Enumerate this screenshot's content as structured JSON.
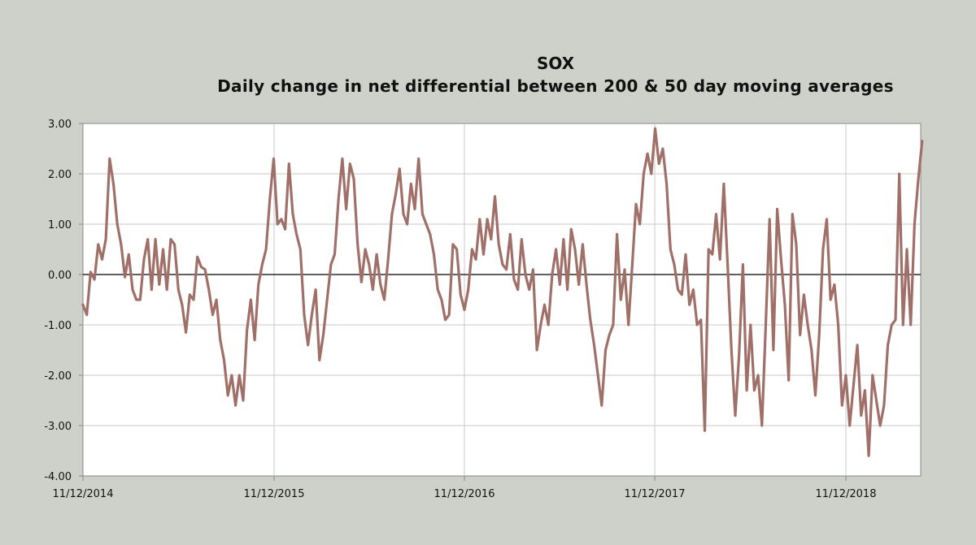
{
  "chart_data": {
    "type": "line",
    "title": "SOX",
    "subtitle": "Daily change in net differential  between 200 & 50 day moving averages",
    "xlabel": "",
    "ylabel": "",
    "ylim": [
      -4.0,
      3.0
    ],
    "yticks": [
      "3.00",
      "2.00",
      "1.00",
      "0.00",
      "-1.00",
      "-2.00",
      "-3.00",
      "-4.00"
    ],
    "xticks": [
      "11/12/2014",
      "11/12/2015",
      "11/12/2016",
      "11/12/2017",
      "11/12/2018"
    ],
    "grid": true,
    "legend": "none",
    "line_color": "#a07068",
    "series": [
      {
        "values": [
          [
            0.0,
            -0.6
          ],
          [
            0.02,
            -0.8
          ],
          [
            0.04,
            0.05
          ],
          [
            0.06,
            -0.1
          ],
          [
            0.08,
            0.6
          ],
          [
            0.1,
            0.3
          ],
          [
            0.12,
            0.7
          ],
          [
            0.14,
            2.3
          ],
          [
            0.16,
            1.8
          ],
          [
            0.18,
            1.0
          ],
          [
            0.2,
            0.6
          ],
          [
            0.22,
            -0.05
          ],
          [
            0.24,
            0.4
          ],
          [
            0.26,
            -0.3
          ],
          [
            0.28,
            -0.5
          ],
          [
            0.3,
            -0.5
          ],
          [
            0.32,
            0.3
          ],
          [
            0.34,
            0.7
          ],
          [
            0.36,
            -0.3
          ],
          [
            0.38,
            0.7
          ],
          [
            0.4,
            -0.2
          ],
          [
            0.42,
            0.5
          ],
          [
            0.44,
            -0.3
          ],
          [
            0.46,
            0.7
          ],
          [
            0.48,
            0.6
          ],
          [
            0.5,
            -0.3
          ],
          [
            0.52,
            -0.6
          ],
          [
            0.54,
            -1.15
          ],
          [
            0.56,
            -0.4
          ],
          [
            0.58,
            -0.5
          ],
          [
            0.6,
            0.35
          ],
          [
            0.62,
            0.15
          ],
          [
            0.64,
            0.1
          ],
          [
            0.66,
            -0.3
          ],
          [
            0.68,
            -0.8
          ],
          [
            0.7,
            -0.5
          ],
          [
            0.72,
            -1.3
          ],
          [
            0.74,
            -1.7
          ],
          [
            0.76,
            -2.4
          ],
          [
            0.78,
            -2.0
          ],
          [
            0.8,
            -2.6
          ],
          [
            0.82,
            -2.0
          ],
          [
            0.84,
            -2.5
          ],
          [
            0.86,
            -1.1
          ],
          [
            0.88,
            -0.5
          ],
          [
            0.9,
            -1.3
          ],
          [
            0.92,
            -0.2
          ],
          [
            0.94,
            0.2
          ],
          [
            0.96,
            0.5
          ],
          [
            0.98,
            1.5
          ],
          [
            1.0,
            2.3
          ],
          [
            1.02,
            1.0
          ],
          [
            1.04,
            1.1
          ],
          [
            1.06,
            0.9
          ],
          [
            1.08,
            2.2
          ],
          [
            1.1,
            1.2
          ],
          [
            1.12,
            0.8
          ],
          [
            1.14,
            0.5
          ],
          [
            1.16,
            -0.8
          ],
          [
            1.18,
            -1.4
          ],
          [
            1.2,
            -0.8
          ],
          [
            1.22,
            -0.3
          ],
          [
            1.24,
            -1.7
          ],
          [
            1.26,
            -1.2
          ],
          [
            1.28,
            -0.5
          ],
          [
            1.3,
            0.2
          ],
          [
            1.32,
            0.4
          ],
          [
            1.34,
            1.5
          ],
          [
            1.36,
            2.3
          ],
          [
            1.38,
            1.3
          ],
          [
            1.4,
            2.2
          ],
          [
            1.42,
            1.9
          ],
          [
            1.44,
            0.6
          ],
          [
            1.46,
            -0.15
          ],
          [
            1.48,
            0.5
          ],
          [
            1.5,
            0.2
          ],
          [
            1.52,
            -0.3
          ],
          [
            1.54,
            0.4
          ],
          [
            1.56,
            -0.2
          ],
          [
            1.58,
            -0.5
          ],
          [
            1.6,
            0.3
          ],
          [
            1.62,
            1.2
          ],
          [
            1.64,
            1.6
          ],
          [
            1.66,
            2.1
          ],
          [
            1.68,
            1.2
          ],
          [
            1.7,
            1.0
          ],
          [
            1.72,
            1.8
          ],
          [
            1.74,
            1.3
          ],
          [
            1.76,
            2.3
          ],
          [
            1.78,
            1.2
          ],
          [
            1.8,
            1.0
          ],
          [
            1.82,
            0.8
          ],
          [
            1.84,
            0.4
          ],
          [
            1.86,
            -0.3
          ],
          [
            1.88,
            -0.5
          ],
          [
            1.9,
            -0.9
          ],
          [
            1.92,
            -0.8
          ],
          [
            1.94,
            0.6
          ],
          [
            1.96,
            0.5
          ],
          [
            1.98,
            -0.4
          ],
          [
            2.0,
            -0.7
          ],
          [
            2.02,
            -0.3
          ],
          [
            2.04,
            0.5
          ],
          [
            2.06,
            0.3
          ],
          [
            2.08,
            1.1
          ],
          [
            2.1,
            0.4
          ],
          [
            2.12,
            1.1
          ],
          [
            2.14,
            0.7
          ],
          [
            2.16,
            1.55
          ],
          [
            2.18,
            0.6
          ],
          [
            2.2,
            0.2
          ],
          [
            2.22,
            0.1
          ],
          [
            2.24,
            0.8
          ],
          [
            2.26,
            -0.1
          ],
          [
            2.28,
            -0.3
          ],
          [
            2.3,
            0.7
          ],
          [
            2.32,
            0.0
          ],
          [
            2.34,
            -0.3
          ],
          [
            2.36,
            0.1
          ],
          [
            2.38,
            -1.5
          ],
          [
            2.4,
            -1.0
          ],
          [
            2.42,
            -0.6
          ],
          [
            2.44,
            -1.0
          ],
          [
            2.46,
            0.0
          ],
          [
            2.48,
            0.5
          ],
          [
            2.5,
            -0.2
          ],
          [
            2.52,
            0.7
          ],
          [
            2.54,
            -0.3
          ],
          [
            2.56,
            0.9
          ],
          [
            2.58,
            0.5
          ],
          [
            2.6,
            -0.2
          ],
          [
            2.62,
            0.6
          ],
          [
            2.64,
            -0.2
          ],
          [
            2.66,
            -0.9
          ],
          [
            2.68,
            -1.4
          ],
          [
            2.7,
            -2.0
          ],
          [
            2.72,
            -2.6
          ],
          [
            2.74,
            -1.5
          ],
          [
            2.76,
            -1.2
          ],
          [
            2.78,
            -1.0
          ],
          [
            2.8,
            0.8
          ],
          [
            2.82,
            -0.5
          ],
          [
            2.84,
            0.1
          ],
          [
            2.86,
            -1.0
          ],
          [
            2.88,
            0.2
          ],
          [
            2.9,
            1.4
          ],
          [
            2.92,
            1.0
          ],
          [
            2.94,
            2.0
          ],
          [
            2.96,
            2.4
          ],
          [
            2.98,
            2.0
          ],
          [
            3.0,
            2.9
          ],
          [
            3.02,
            2.2
          ],
          [
            3.04,
            2.5
          ],
          [
            3.06,
            1.8
          ],
          [
            3.08,
            0.5
          ],
          [
            3.1,
            0.2
          ],
          [
            3.12,
            -0.3
          ],
          [
            3.14,
            -0.4
          ],
          [
            3.16,
            0.4
          ],
          [
            3.18,
            -0.6
          ],
          [
            3.2,
            -0.3
          ],
          [
            3.22,
            -1.0
          ],
          [
            3.24,
            -0.9
          ],
          [
            3.26,
            -3.1
          ],
          [
            3.28,
            0.5
          ],
          [
            3.3,
            0.4
          ],
          [
            3.32,
            1.2
          ],
          [
            3.34,
            0.3
          ],
          [
            3.36,
            1.8
          ],
          [
            3.38,
            0.2
          ],
          [
            3.4,
            -1.5
          ],
          [
            3.42,
            -2.8
          ],
          [
            3.44,
            -1.6
          ],
          [
            3.46,
            0.2
          ],
          [
            3.48,
            -2.3
          ],
          [
            3.5,
            -1.0
          ],
          [
            3.52,
            -2.3
          ],
          [
            3.54,
            -2.0
          ],
          [
            3.56,
            -3.0
          ],
          [
            3.58,
            -1.0
          ],
          [
            3.6,
            1.1
          ],
          [
            3.62,
            -1.5
          ],
          [
            3.64,
            1.3
          ],
          [
            3.66,
            0.3
          ],
          [
            3.68,
            -0.6
          ],
          [
            3.7,
            -2.1
          ],
          [
            3.72,
            1.2
          ],
          [
            3.74,
            0.6
          ],
          [
            3.76,
            -1.2
          ],
          [
            3.78,
            -0.4
          ],
          [
            3.8,
            -1.0
          ],
          [
            3.82,
            -1.5
          ],
          [
            3.84,
            -2.4
          ],
          [
            3.86,
            -1.2
          ],
          [
            3.88,
            0.5
          ],
          [
            3.9,
            1.1
          ],
          [
            3.92,
            -0.5
          ],
          [
            3.94,
            -0.2
          ],
          [
            3.96,
            -1.0
          ],
          [
            3.98,
            -2.6
          ],
          [
            4.0,
            -2.0
          ],
          [
            4.02,
            -3.0
          ],
          [
            4.04,
            -2.2
          ],
          [
            4.06,
            -1.4
          ],
          [
            4.08,
            -2.8
          ],
          [
            4.1,
            -2.3
          ],
          [
            4.12,
            -3.6
          ],
          [
            4.14,
            -2.0
          ],
          [
            4.16,
            -2.5
          ],
          [
            4.18,
            -3.0
          ],
          [
            4.2,
            -2.6
          ],
          [
            4.22,
            -1.4
          ],
          [
            4.24,
            -1.0
          ],
          [
            4.26,
            -0.9
          ],
          [
            4.28,
            2.0
          ],
          [
            4.3,
            -1.0
          ],
          [
            4.32,
            0.5
          ],
          [
            4.34,
            -1.0
          ],
          [
            4.36,
            1.0
          ],
          [
            4.38,
            1.9
          ],
          [
            4.4,
            2.65
          ]
        ]
      }
    ]
  }
}
